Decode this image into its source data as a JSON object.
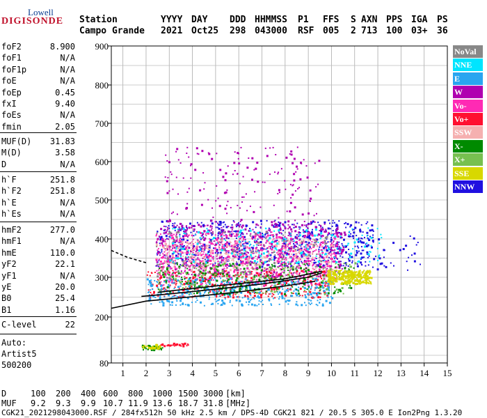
{
  "logo": {
    "top": "Lowell",
    "main": "DIGISONDE"
  },
  "header": {
    "station_label": "Station",
    "station_value": "Campo Grande",
    "cols": [
      {
        "label": "YYYY",
        "value": "2021"
      },
      {
        "label": "DAY",
        "value": "Oct25"
      },
      {
        "label": "DDD",
        "value": "298"
      },
      {
        "label": "HHMMSS",
        "value": "043000"
      },
      {
        "label": "P1",
        "value": "RSF"
      },
      {
        "label": "FFS",
        "value": "005"
      },
      {
        "label": "S",
        "value": "2"
      },
      {
        "label": "AXN",
        "value": "713"
      },
      {
        "label": "PPS",
        "value": "100"
      },
      {
        "label": "IGA",
        "value": "03+"
      },
      {
        "label": "PS",
        "value": "36"
      }
    ]
  },
  "sidebar": {
    "group1": [
      {
        "label": "foF2",
        "value": "8.900"
      },
      {
        "label": "foF1",
        "value": "N/A"
      },
      {
        "label": "foF1p",
        "value": "N/A"
      },
      {
        "label": "foE",
        "value": "N/A"
      },
      {
        "label": "foEp",
        "value": "0.45"
      },
      {
        "label": "fxI",
        "value": "9.40"
      },
      {
        "label": "foEs",
        "value": "N/A"
      },
      {
        "label": "fmin",
        "value": "2.05"
      }
    ],
    "group2": [
      {
        "label": "MUF(D)",
        "value": "31.83"
      },
      {
        "label": "M(D)",
        "value": "3.58"
      },
      {
        "label": "D",
        "value": "N/A"
      }
    ],
    "group3": [
      {
        "label": "h`F",
        "value": "251.8"
      },
      {
        "label": "h`F2",
        "value": "251.8"
      },
      {
        "label": "h`E",
        "value": "N/A"
      },
      {
        "label": "h`Es",
        "value": "N/A"
      }
    ],
    "group4": [
      {
        "label": "hmF2",
        "value": "277.0"
      },
      {
        "label": "hmF1",
        "value": "N/A"
      },
      {
        "label": "hmE",
        "value": "110.0"
      },
      {
        "label": "yF2",
        "value": "22.1"
      },
      {
        "label": "yF1",
        "value": "N/A"
      },
      {
        "label": "yE",
        "value": "20.0"
      },
      {
        "label": "B0",
        "value": "25.4"
      },
      {
        "label": "B1",
        "value": "1.16"
      }
    ],
    "group5": [
      {
        "label": "C-level",
        "value": "22"
      }
    ],
    "auto": [
      "Auto:",
      "Artist5",
      "500200"
    ]
  },
  "legend": [
    {
      "label": "NoVal",
      "color": "#888888"
    },
    {
      "label": "NNE",
      "color": "#00e5ff"
    },
    {
      "label": "E",
      "color": "#2aa5f0"
    },
    {
      "label": "W",
      "color": "#b000b0"
    },
    {
      "label": "Vo-",
      "color": "#ff2ab4"
    },
    {
      "label": "Vo+",
      "color": "#ff1030"
    },
    {
      "label": "SSW",
      "color": "#f5b0b0"
    },
    {
      "label": "X-",
      "color": "#008a00"
    },
    {
      "label": "X+",
      "color": "#77c050"
    },
    {
      "label": "SSE",
      "color": "#d8d800"
    },
    {
      "label": "NNW",
      "color": "#2010e0"
    }
  ],
  "chart_data": {
    "type": "scatter",
    "title": "",
    "xlabel": "",
    "ylabel": "",
    "xlim": [
      0.5,
      15
    ],
    "ylim": [
      80,
      900
    ],
    "x_ticks": [
      1,
      2,
      3,
      4,
      5,
      6,
      7,
      8,
      9,
      10,
      11,
      12,
      13,
      14,
      15
    ],
    "y_ticks": [
      80,
      200,
      300,
      400,
      500,
      600,
      700,
      800,
      900
    ],
    "grid": true,
    "legend_position": "right",
    "clusters": [
      {
        "series": "NNW",
        "x_range": [
          2.4,
          11.8
        ],
        "h_range": [
          330,
          450
        ],
        "n": 700
      },
      {
        "series": "W",
        "x_range": [
          2.4,
          10.6
        ],
        "h_range": [
          300,
          440
        ],
        "n": 650
      },
      {
        "series": "Vo-",
        "x_range": [
          2.4,
          10.2
        ],
        "h_range": [
          280,
          420
        ],
        "n": 650
      },
      {
        "series": "Vo+",
        "x_range": [
          2.0,
          10.0
        ],
        "h_range": [
          250,
          320
        ],
        "n": 350
      },
      {
        "series": "SSW",
        "x_range": [
          2.4,
          10.0
        ],
        "h_range": [
          320,
          400
        ],
        "n": 300
      },
      {
        "series": "NNE",
        "x_range": [
          3.0,
          12.2
        ],
        "h_range": [
          340,
          430
        ],
        "n": 200
      },
      {
        "series": "E",
        "x_range": [
          2.0,
          10.0
        ],
        "h_range": [
          230,
          300
        ],
        "n": 450
      },
      {
        "series": "X-",
        "x_range": [
          2.5,
          11.0
        ],
        "h_range": [
          260,
          340
        ],
        "n": 250
      },
      {
        "series": "X+",
        "x_range": [
          2.5,
          11.0
        ],
        "h_range": [
          260,
          340
        ],
        "n": 150
      },
      {
        "series": "SSE",
        "x_range": [
          9.8,
          11.7
        ],
        "h_range": [
          285,
          320
        ],
        "n": 350
      },
      {
        "series": "NoVal",
        "x_range": [
          2.4,
          9.8
        ],
        "h_range": [
          300,
          420
        ],
        "n": 120
      },
      {
        "series": "W",
        "x_range": [
          2.8,
          9.5
        ],
        "h_range": [
          440,
          640
        ],
        "n": 180
      },
      {
        "series": "NNW",
        "x_range": [
          11.0,
          13.8
        ],
        "h_range": [
          320,
          410
        ],
        "n": 40
      },
      {
        "series": "X-",
        "x_range": [
          1.8,
          2.7
        ],
        "h_range": [
          116,
          128
        ],
        "n": 40
      },
      {
        "series": "SSE",
        "x_range": [
          1.8,
          2.6
        ],
        "h_range": [
          118,
          130
        ],
        "n": 30
      },
      {
        "series": "Vo+",
        "x_range": [
          2.6,
          3.8
        ],
        "h_range": [
          126,
          134
        ],
        "n": 30
      }
    ],
    "traces": [
      {
        "name": "trace-o-lower",
        "points": [
          [
            0.5,
            222
          ],
          [
            2,
            240
          ],
          [
            4,
            251
          ],
          [
            6,
            263
          ],
          [
            8,
            278
          ],
          [
            9.3,
            290
          ]
        ]
      },
      {
        "name": "trace-o-upper",
        "points": [
          [
            1.8,
            252
          ],
          [
            3,
            258
          ],
          [
            5,
            270
          ],
          [
            7,
            283
          ],
          [
            9,
            300
          ],
          [
            9.6,
            312
          ]
        ]
      },
      {
        "name": "trace-x",
        "points": [
          [
            2.5,
            262
          ],
          [
            4,
            272
          ],
          [
            6,
            284
          ],
          [
            8,
            296
          ],
          [
            9.6,
            316
          ]
        ]
      },
      {
        "name": "trace-left",
        "points": [
          [
            0.5,
            370
          ],
          [
            1.2,
            352
          ],
          [
            2.0,
            338
          ]
        ]
      }
    ]
  },
  "footer": {
    "d_label": "D",
    "d_values": [
      "100",
      "200",
      "400",
      "600",
      "800",
      "1000",
      "1500",
      "3000",
      "[km]"
    ],
    "muf_label": "MUF",
    "muf_values": [
      "9.2",
      "9.3",
      "9.9",
      "10.7",
      "11.9",
      "13.6",
      "18.7",
      "31.8",
      "[MHz]"
    ],
    "info": "CGK21_2021298043000.RSF / 284fx512h 50 kHz 2.5 km / DPS-4D CGK21 821 / 20.5 S 305.0 E Ion2Png 1.3.20"
  }
}
